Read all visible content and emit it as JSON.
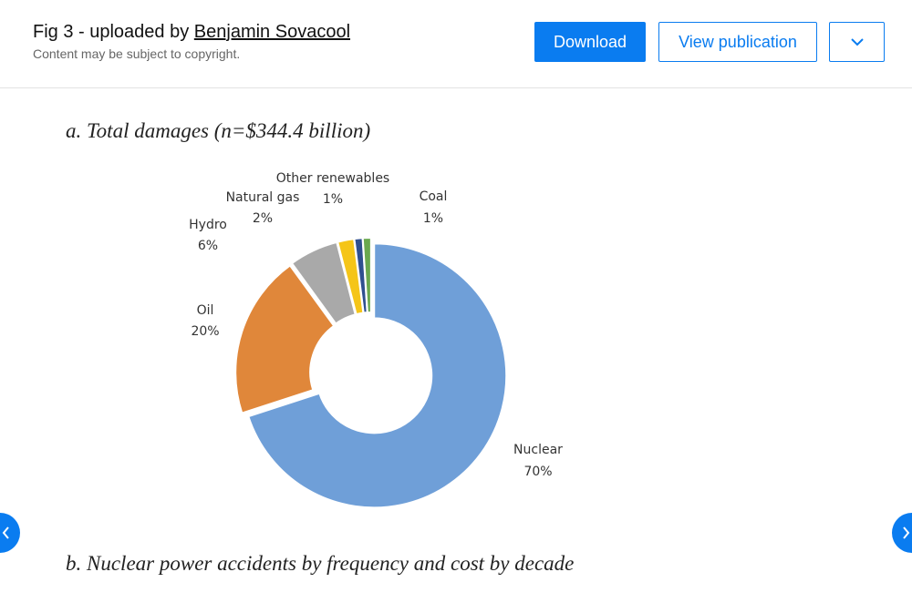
{
  "header": {
    "title_prefix": "Fig 3 - uploaded by",
    "author": "Benjamin Sovacool",
    "notice": "Content may be subject to copyright."
  },
  "buttons": {
    "download": "Download",
    "view": "View publication"
  },
  "chart_data": {
    "type": "donut",
    "title": "a. Total damages (n=$344.4 billion)",
    "categories": [
      "Nuclear",
      "Oil",
      "Hydro",
      "Natural gas",
      "Other renewables",
      "Coal"
    ],
    "values": [
      70,
      20,
      6,
      2,
      1,
      1
    ],
    "value_labels": [
      "70%",
      "20%",
      "6%",
      "2%",
      "1%",
      "1%"
    ],
    "colors": [
      "#6f9fd8",
      "#e0873a",
      "#a9a9a9",
      "#f5c518",
      "#2f4f8f",
      "#6aa84f"
    ]
  },
  "next_heading": "b. Nuclear power accidents by frequency and cost by decade"
}
